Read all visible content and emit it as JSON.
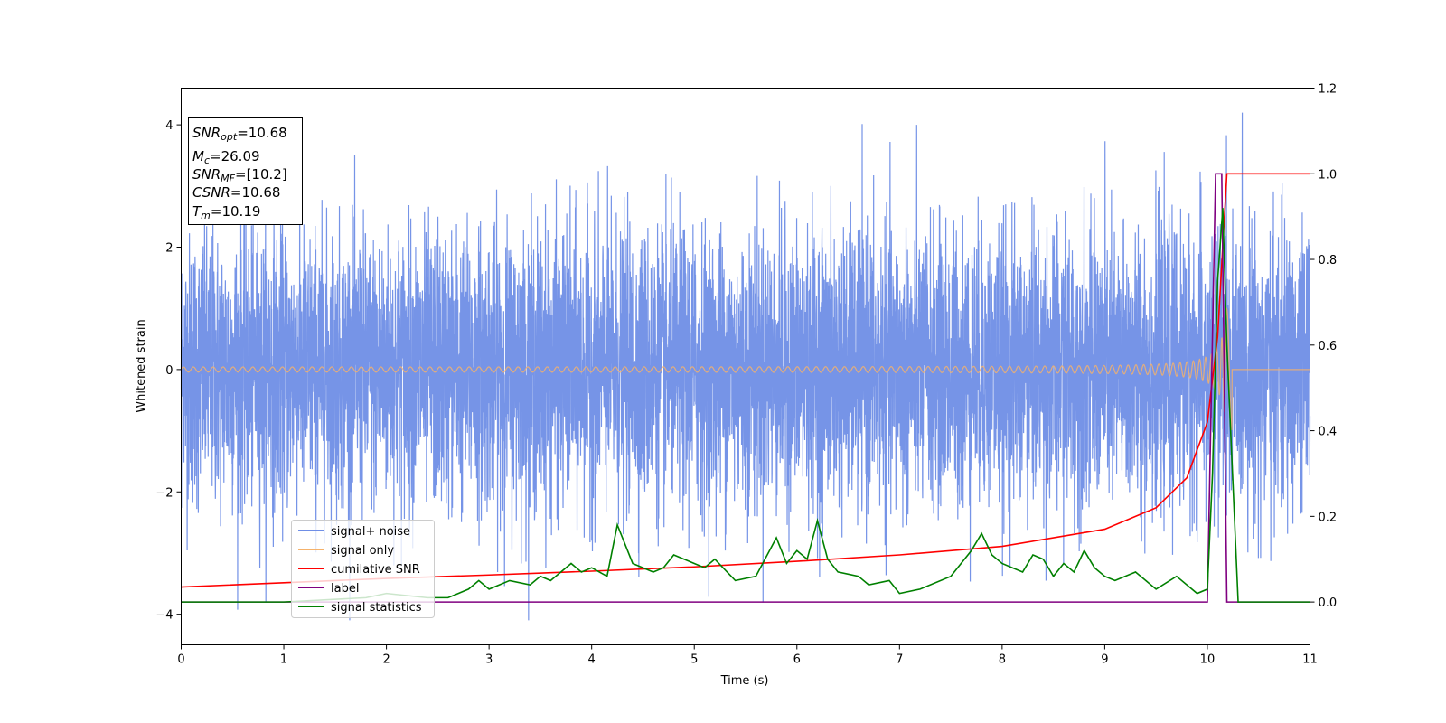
{
  "chart_data": {
    "type": "line",
    "xlabel": "Time (s)",
    "ylabel": "Whitened strain",
    "xlim": [
      0,
      11
    ],
    "ylim_left": [
      -4.5,
      4.6
    ],
    "ylim_right": [
      -0.1,
      1.2
    ],
    "x_ticks": [
      0,
      1,
      2,
      3,
      4,
      5,
      6,
      7,
      8,
      9,
      10,
      11
    ],
    "y_left_ticks": [
      -4,
      -2,
      0,
      2,
      4
    ],
    "y_right_ticks": [
      0.0,
      0.2,
      0.4,
      0.6,
      0.8,
      1.0,
      1.2
    ],
    "y_left_tick_labels": [
      "−4",
      "−2",
      "0",
      "2",
      "4"
    ],
    "y_right_tick_labels": [
      "0.0",
      "0.2",
      "0.4",
      "0.6",
      "0.8",
      "1.0",
      "1.2"
    ],
    "grid": false,
    "legend_position": "lower-left",
    "info_box": {
      "snr_opt": {
        "sym": "SNR",
        "sub": "opt",
        "value": "=10.68"
      },
      "mc": {
        "sym": "M",
        "sub": "c",
        "value": "=26.09"
      },
      "snr_mf": {
        "sym": "SNR",
        "sub": "MF",
        "value": "=[10.2]"
      },
      "csnr": {
        "sym": "CSNR",
        "sub": "",
        "value": "=10.68"
      },
      "tm": {
        "sym": "T",
        "sub": "m",
        "value": "=10.19"
      }
    },
    "series": [
      {
        "name": "signal+ noise",
        "axis": "left",
        "color": "#6f8ee6",
        "description_values": "noise band amplitude about ±1.8, extremes about ±3.5",
        "envelope": {
          "typical": 1.8,
          "peak": 3.6,
          "max": 4.2,
          "min": -4.1
        }
      },
      {
        "name": "signal only",
        "axis": "left",
        "color": "#f5b26b",
        "chirp": {
          "t_merge": 10.19,
          "a0": 0.04,
          "a_peak": 1.1,
          "f0": 10,
          "f_end": 60
        }
      },
      {
        "name": "cumilative SNR",
        "axis": "right",
        "color": "#ff0000",
        "x": [
          0,
          1,
          2,
          3,
          4,
          5,
          6,
          7,
          8,
          9,
          9.5,
          9.8,
          10.0,
          10.1,
          10.19,
          10.25,
          11
        ],
        "y": [
          0.035,
          0.045,
          0.055,
          0.063,
          0.072,
          0.082,
          0.095,
          0.11,
          0.13,
          0.17,
          0.22,
          0.29,
          0.42,
          0.62,
          1.0,
          1.0,
          1.0
        ]
      },
      {
        "name": "label",
        "axis": "right",
        "color": "#800080",
        "x": [
          0,
          10.0,
          10.08,
          10.14,
          10.19,
          11
        ],
        "y": [
          0,
          0,
          1.0,
          1.0,
          0,
          0
        ]
      },
      {
        "name": "signal statistics",
        "axis": "right",
        "color": "#008000",
        "x": [
          0,
          1,
          1.8,
          2.0,
          2.4,
          2.6,
          2.8,
          2.9,
          3.0,
          3.2,
          3.4,
          3.5,
          3.6,
          3.8,
          3.9,
          4.0,
          4.15,
          4.25,
          4.4,
          4.6,
          4.7,
          4.8,
          5.0,
          5.1,
          5.2,
          5.4,
          5.6,
          5.8,
          5.9,
          6.0,
          6.1,
          6.2,
          6.3,
          6.4,
          6.6,
          6.7,
          6.9,
          7.0,
          7.2,
          7.5,
          7.7,
          7.8,
          7.9,
          8.0,
          8.1,
          8.2,
          8.3,
          8.4,
          8.5,
          8.6,
          8.7,
          8.8,
          8.9,
          9.0,
          9.1,
          9.3,
          9.5,
          9.7,
          9.9,
          10.0,
          10.05,
          10.1,
          10.15,
          10.19,
          10.3,
          11
        ],
        "y": [
          0.0,
          0.0,
          0.01,
          0.02,
          0.01,
          0.01,
          0.03,
          0.05,
          0.03,
          0.05,
          0.04,
          0.06,
          0.05,
          0.09,
          0.07,
          0.08,
          0.06,
          0.18,
          0.09,
          0.07,
          0.08,
          0.11,
          0.09,
          0.08,
          0.1,
          0.05,
          0.06,
          0.15,
          0.09,
          0.12,
          0.1,
          0.19,
          0.1,
          0.07,
          0.06,
          0.04,
          0.05,
          0.02,
          0.03,
          0.06,
          0.12,
          0.16,
          0.11,
          0.09,
          0.08,
          0.07,
          0.11,
          0.1,
          0.06,
          0.09,
          0.07,
          0.12,
          0.08,
          0.06,
          0.05,
          0.07,
          0.03,
          0.06,
          0.02,
          0.03,
          0.3,
          0.75,
          0.92,
          0.6,
          0.0,
          0.0
        ]
      }
    ]
  }
}
